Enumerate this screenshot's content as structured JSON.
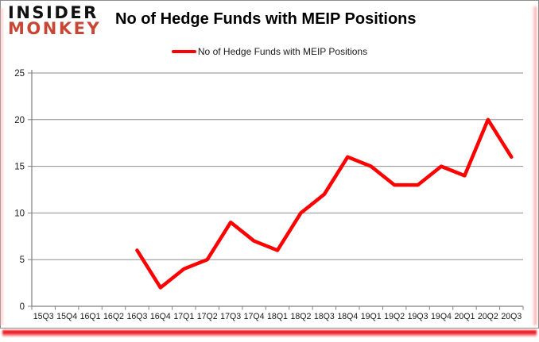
{
  "logo": {
    "line1": "INSIDER",
    "line2": "MONKEY"
  },
  "header": {
    "title": "No of Hedge Funds with MEIP Positions"
  },
  "legend": {
    "label": "No of Hedge Funds with MEIP Positions"
  },
  "colors": {
    "line": "#fe0000",
    "logo_black": "#111111",
    "logo_red": "#c74634",
    "grid": "#8e8e8e",
    "axis": "#808080",
    "tick_text": "#1a1a1a",
    "frame_border": "#8c8c8c",
    "shadow_red": "#ee1c24"
  },
  "chart_data": {
    "type": "line",
    "title": "No of Hedge Funds with MEIP Positions",
    "categories": [
      "15Q3",
      "15Q4",
      "16Q1",
      "16Q2",
      "16Q3",
      "16Q4",
      "17Q1",
      "17Q2",
      "17Q3",
      "17Q4",
      "18Q1",
      "18Q2",
      "18Q3",
      "18Q4",
      "19Q1",
      "19Q2",
      "19Q3",
      "19Q4",
      "20Q1",
      "20Q2",
      "20Q3"
    ],
    "series": [
      {
        "name": "No of Hedge Funds with MEIP Positions",
        "values": [
          null,
          null,
          null,
          null,
          6,
          2,
          4,
          5,
          9,
          7,
          6,
          10,
          12,
          16,
          15,
          13,
          13,
          15,
          14,
          20,
          16
        ]
      }
    ],
    "xlabel": "",
    "ylabel": "",
    "ylim": [
      0,
      25
    ],
    "yticks": [
      0,
      5,
      10,
      15,
      20,
      25
    ],
    "grid": true,
    "legend_position": "top"
  }
}
